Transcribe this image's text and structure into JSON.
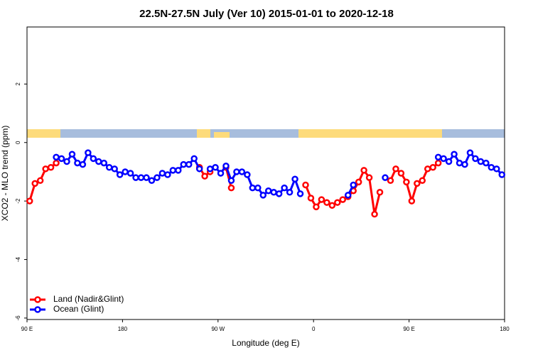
{
  "chart_data": {
    "type": "line",
    "title": "22.5N-27.5N July (Ver 10)   2015-01-01 to 2020-12-18",
    "x_label": "Longitude (deg E)",
    "y_label": "XCO2 - MLO trend (ppm)",
    "x": [
      92.5,
      97.5,
      102.5,
      107.5,
      112.5,
      117.5,
      122.5,
      127.5,
      132.5,
      137.5,
      142.5,
      147.5,
      152.5,
      157.5,
      162.5,
      167.5,
      172.5,
      177.5,
      182.5,
      187.5,
      192.5,
      197.5,
      202.5,
      207.5,
      212.5,
      217.5,
      222.5,
      227.5,
      232.5,
      237.5,
      242.5,
      247.5,
      252.5,
      257.5,
      262.5,
      267.5,
      272.5,
      277.5,
      282.5,
      287.5,
      292.5,
      297.5,
      302.5,
      307.5,
      312.5,
      317.5,
      322.5,
      327.5,
      332.5,
      337.5,
      342.5,
      347.5,
      352.5,
      357.5,
      362.5,
      367.5,
      372.5,
      377.5,
      382.5,
      387.5,
      392.5,
      397.5,
      402.5,
      407.5,
      412.5,
      417.5,
      422.5,
      427.5,
      432.5,
      437.5,
      442.5,
      447.5,
      452.5,
      457.5,
      462.5,
      467.5,
      472.5,
      477.5,
      482.5,
      487.5,
      492.5,
      497.5,
      502.5,
      507.5,
      512.5,
      517.5,
      522.5,
      527.5,
      532.5,
      537.5
    ],
    "series": [
      {
        "name": "Land (Nadir&Glint)",
        "color": "#ff0000",
        "values": [
          -2.0,
          -1.4,
          -1.3,
          -0.9,
          -0.85,
          -0.7,
          null,
          null,
          null,
          null,
          null,
          null,
          null,
          null,
          null,
          null,
          null,
          null,
          null,
          null,
          null,
          null,
          null,
          null,
          null,
          null,
          null,
          null,
          null,
          null,
          null,
          null,
          -0.85,
          -1.15,
          -1.0,
          null,
          null,
          -0.85,
          -1.55,
          null,
          null,
          null,
          null,
          null,
          null,
          null,
          null,
          null,
          null,
          null,
          null,
          null,
          -1.45,
          -1.9,
          -2.2,
          -1.95,
          -2.05,
          -2.15,
          -2.05,
          -1.95,
          -1.85,
          -1.65,
          -1.35,
          -0.95,
          -1.2,
          -2.45,
          -1.7,
          null,
          -1.3,
          -0.9,
          -1.05,
          -1.35,
          -2.0,
          -1.4,
          -1.3,
          -0.9,
          -0.85,
          -0.7,
          null,
          null,
          null,
          null,
          null,
          null,
          null,
          null,
          null,
          null,
          null,
          null
        ]
      },
      {
        "name": "Ocean (Glint)",
        "color": "#0000ff",
        "values": [
          null,
          null,
          null,
          null,
          null,
          -0.5,
          -0.55,
          -0.65,
          -0.4,
          -0.7,
          -0.75,
          -0.35,
          -0.55,
          -0.65,
          -0.7,
          -0.85,
          -0.9,
          -1.1,
          -1.0,
          -1.05,
          -1.2,
          -1.2,
          -1.2,
          -1.3,
          -1.2,
          -1.05,
          -1.1,
          -0.95,
          -0.95,
          -0.75,
          -0.75,
          -0.55,
          -0.9,
          null,
          -0.9,
          -0.85,
          -1.05,
          -0.8,
          -1.3,
          -1.0,
          -1.0,
          -1.1,
          -1.55,
          -1.55,
          -1.8,
          -1.65,
          -1.7,
          -1.75,
          -1.55,
          -1.7,
          -1.25,
          -1.75,
          null,
          null,
          null,
          null,
          null,
          null,
          null,
          null,
          -1.8,
          -1.45,
          null,
          null,
          null,
          null,
          null,
          -1.2,
          null,
          null,
          null,
          null,
          null,
          null,
          null,
          null,
          null,
          -0.5,
          -0.55,
          -0.65,
          -0.4,
          -0.7,
          -0.75,
          -0.35,
          -0.55,
          -0.65,
          -0.7,
          -0.85,
          -0.9,
          -1.1
        ]
      }
    ],
    "xlim": [
      90,
      540
    ],
    "ylim": [
      -6.05,
      3.95
    ],
    "xticks": [
      {
        "value": 90,
        "label": "90 E"
      },
      180,
      {
        "value": 270,
        "label": "90 W"
      },
      {
        "value": 360,
        "label": "0"
      },
      {
        "value": 450,
        "label": "90 E"
      },
      {
        "value": 540,
        "label": "180"
      }
    ],
    "yticks": [
      -6,
      -4,
      -2,
      0,
      2
    ],
    "legend": "bottom-left"
  }
}
